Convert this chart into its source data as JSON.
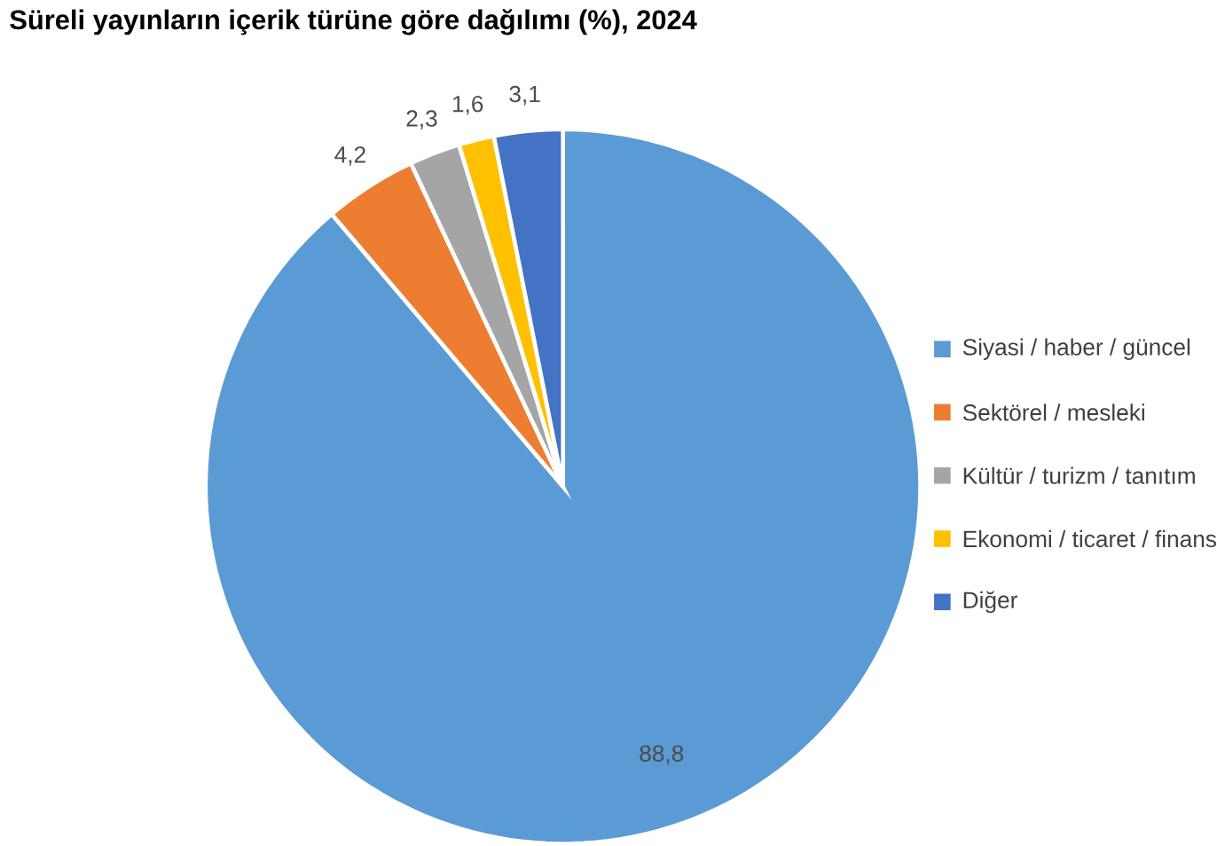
{
  "chart_data": {
    "type": "pie",
    "title": "Süreli yayınların içerik türüne göre dağılımı (%), 2024",
    "categories": [
      "Siyasi / haber / güncel",
      "Sektörel / mesleki",
      "Kültür / turizm / tanıtım",
      "Ekonomi / ticaret / finans",
      "Diğer"
    ],
    "values": [
      88.8,
      4.2,
      2.3,
      1.6,
      3.1
    ],
    "colors": [
      "#5b9bd5",
      "#ed7d31",
      "#a5a5a5",
      "#ffc000",
      "#4472c4"
    ],
    "value_labels": [
      "88,8",
      "4,2",
      "2,3",
      "1,6",
      "3,1"
    ],
    "legend": "right"
  }
}
